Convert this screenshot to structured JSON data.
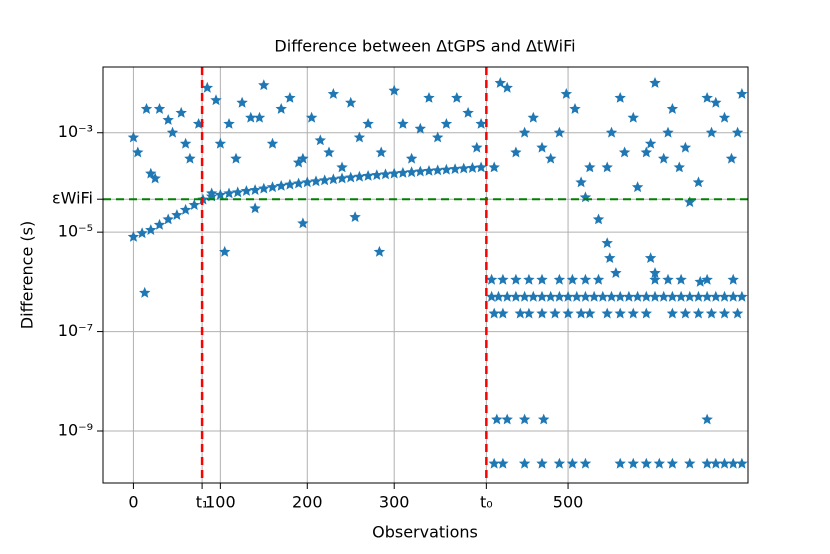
{
  "chart_data": {
    "type": "scatter",
    "title": "Difference between ΔtGPS and ΔtWiFi",
    "xlabel": "Observations",
    "ylabel": "Difference (s)",
    "log_y": true,
    "grid": true,
    "marker": "star",
    "xlim": [
      -35,
      707
    ],
    "ylim": [
      9e-11,
      0.021
    ],
    "xticks": [
      0,
      {
        "value": 79,
        "label": "t₁"
      },
      100,
      200,
      300,
      {
        "value": 406,
        "label": "t₀"
      },
      500
    ],
    "yticks": [
      {
        "value": 1e-09,
        "label": "10⁻⁹"
      },
      {
        "value": 1e-07,
        "label": "10⁻⁷"
      },
      {
        "value": 1e-05,
        "label": "10⁻⁵"
      },
      {
        "value": 4.6e-05,
        "label": "εWiFi"
      },
      {
        "value": 0.001,
        "label": "10⁻³"
      }
    ],
    "vlines": [
      {
        "value": 79,
        "color": "#ff0000"
      },
      {
        "value": 406,
        "color": "#ff0000"
      }
    ],
    "hlines": [
      {
        "value": 4.6e-05,
        "color": "#008000"
      }
    ],
    "series": [
      {
        "color": "#1f77b4",
        "x": [
          0,
          10,
          20,
          30,
          40,
          50,
          60,
          70,
          80,
          90,
          100,
          110,
          120,
          130,
          140,
          150,
          160,
          170,
          180,
          190,
          200,
          210,
          220,
          230,
          240,
          250,
          260,
          270,
          280,
          290,
          300,
          310,
          320,
          330,
          340,
          350,
          360,
          370,
          380,
          390,
          400
        ],
        "values": [
          8e-06,
          9.5e-06,
          1.1e-05,
          1.4e-05,
          1.8e-05,
          2.2e-05,
          2.8e-05,
          3.5e-05,
          4.5e-05,
          5.2e-05,
          5.6e-05,
          6e-05,
          6.3e-05,
          6.7e-05,
          7e-05,
          7.5e-05,
          8e-05,
          8.5e-05,
          9e-05,
          9.5e-05,
          0.0001,
          0.000105,
          0.00011,
          0.000115,
          0.00012,
          0.000125,
          0.00013,
          0.000135,
          0.00014,
          0.000145,
          0.00015,
          0.000155,
          0.00016,
          0.000165,
          0.00017,
          0.000175,
          0.00018,
          0.000185,
          0.00019,
          0.000195,
          0.0002
        ]
      },
      {
        "color": "#1f77b4",
        "x": [
          0,
          5,
          15,
          20,
          25,
          30,
          40,
          45,
          55,
          60,
          65,
          75,
          85,
          95,
          100,
          110,
          118,
          125,
          135,
          145,
          150,
          160,
          170,
          180,
          190,
          195,
          205,
          215,
          225,
          230,
          240,
          250,
          260,
          270,
          285,
          300,
          310,
          320,
          330,
          340,
          350,
          360,
          372,
          385,
          395,
          400,
          140,
          90,
          13,
          105,
          283,
          195,
          255
        ],
        "values": [
          0.0008,
          0.0004,
          0.003,
          0.00015,
          0.00012,
          0.003,
          0.0018,
          0.001,
          0.0025,
          0.0006,
          0.0003,
          0.0015,
          0.008,
          0.0045,
          0.0006,
          0.0015,
          0.0003,
          0.004,
          0.002,
          0.002,
          0.009,
          0.0006,
          0.003,
          0.005,
          0.00025,
          0.0003,
          0.002,
          0.0007,
          0.0004,
          0.006,
          0.0002,
          0.004,
          0.0008,
          0.0015,
          0.0004,
          0.007,
          0.0015,
          0.0003,
          0.0012,
          0.005,
          0.0008,
          0.0015,
          0.005,
          0.0025,
          0.0005,
          0.0015,
          3e-05,
          6e-05,
          6e-07,
          4e-06,
          4e-06,
          1.5e-05,
          2e-05
        ]
      },
      {
        "color": "#1f77b4",
        "x": [
          415,
          422,
          430,
          440,
          450,
          460,
          470,
          480,
          490,
          498,
          508,
          515,
          520,
          525,
          535,
          545,
          550,
          560,
          565,
          575,
          580,
          590,
          595,
          600,
          610,
          615,
          620,
          628,
          635,
          640,
          650,
          660,
          665,
          670,
          680,
          688,
          695,
          700,
          545,
          548,
          555,
          595,
          600,
          652
        ],
        "values": [
          0.0002,
          0.01,
          0.008,
          0.0004,
          0.001,
          0.002,
          0.0005,
          0.0003,
          0.001,
          0.006,
          0.003,
          0.0001,
          5e-05,
          0.0002,
          1.8e-05,
          0.0002,
          0.001,
          0.005,
          0.0004,
          0.002,
          8e-05,
          0.0004,
          0.0006,
          0.01,
          0.0003,
          0.001,
          0.003,
          0.0002,
          0.0005,
          4e-05,
          0.0001,
          0.005,
          0.001,
          0.004,
          0.002,
          0.0003,
          0.001,
          0.006,
          6e-06,
          3e-06,
          1.5e-06,
          3e-06,
          1.5e-06,
          1e-06
        ]
      },
      {
        "color": "#1f77b4",
        "x": [
          412,
          420,
          430,
          440,
          450,
          460,
          470,
          480,
          490,
          500,
          510,
          520,
          530,
          540,
          550,
          560,
          570,
          580,
          590,
          600,
          610,
          620,
          630,
          640,
          650,
          660,
          670,
          680,
          690,
          700
        ],
        "values": [
          5e-07,
          5e-07,
          5e-07,
          5e-07,
          5e-07,
          5e-07,
          5e-07,
          5e-07,
          5e-07,
          5e-07,
          5e-07,
          5e-07,
          5e-07,
          5e-07,
          5e-07,
          5e-07,
          5e-07,
          5e-07,
          5e-07,
          5e-07,
          5e-07,
          5e-07,
          5e-07,
          5e-07,
          5e-07,
          5e-07,
          5e-07,
          5e-07,
          5e-07,
          5e-07
        ]
      },
      {
        "color": "#1f77b4",
        "x": [
          415,
          425,
          445,
          455,
          470,
          485,
          500,
          515,
          525,
          545,
          560,
          575,
          590,
          620,
          635,
          650,
          665,
          680,
          695
        ],
        "values": [
          2.3e-07,
          2.3e-07,
          2.3e-07,
          2.3e-07,
          2.3e-07,
          2.3e-07,
          2.3e-07,
          2.3e-07,
          2.3e-07,
          2.3e-07,
          2.3e-07,
          2.3e-07,
          2.3e-07,
          2.3e-07,
          2.3e-07,
          2.3e-07,
          2.3e-07,
          2.3e-07,
          2.3e-07
        ]
      },
      {
        "color": "#1f77b4",
        "x": [
          412,
          425,
          440,
          455,
          470,
          490,
          505,
          520,
          535,
          600,
          615,
          630,
          660,
          690
        ],
        "values": [
          1.1e-06,
          1.1e-06,
          1.1e-06,
          1.1e-06,
          1.1e-06,
          1.1e-06,
          1.1e-06,
          1.1e-06,
          1.1e-06,
          1.1e-06,
          1.1e-06,
          1.1e-06,
          1.1e-06,
          1.1e-06
        ]
      },
      {
        "color": "#1f77b4",
        "x": [
          415,
          425,
          450,
          470,
          490,
          505,
          520,
          560,
          575,
          590,
          605,
          620,
          640,
          660,
          670,
          680,
          690,
          700
        ],
        "values": [
          2.2e-10,
          2.2e-10,
          2.2e-10,
          2.2e-10,
          2.2e-10,
          2.2e-10,
          2.2e-10,
          2.2e-10,
          2.2e-10,
          2.2e-10,
          2.2e-10,
          2.2e-10,
          2.2e-10,
          2.2e-10,
          2.2e-10,
          2.2e-10,
          2.2e-10,
          2.2e-10
        ]
      },
      {
        "color": "#1f77b4",
        "x": [
          418,
          430,
          450,
          472,
          660
        ],
        "values": [
          1.7e-09,
          1.7e-09,
          1.7e-09,
          1.7e-09,
          1.7e-09
        ]
      }
    ]
  }
}
